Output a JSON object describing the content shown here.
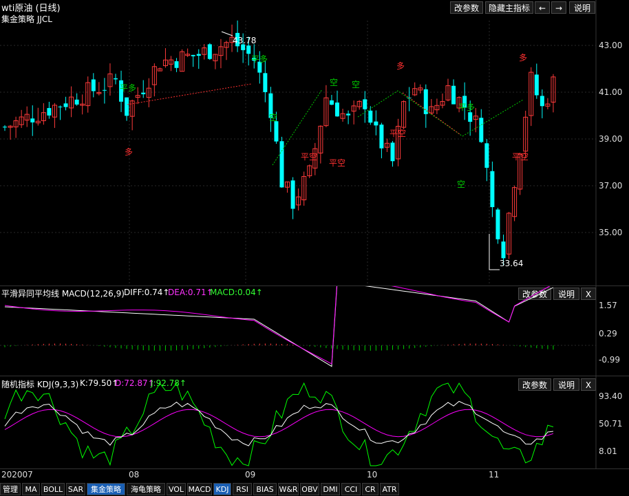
{
  "header": {
    "title": "wti原油 (日线)",
    "strategy": "集金策略 JJCL"
  },
  "buttons": {
    "change_params": "改参数",
    "hide_main": "隐藏主指标",
    "left_arrow": "←",
    "right_arrow": "→",
    "help": "说明",
    "close": "X"
  },
  "price_axis": [
    "43.00",
    "41.00",
    "39.00",
    "37.00",
    "35.00"
  ],
  "annotations": {
    "high": "43.78",
    "low": "33.64",
    "signals": [
      {
        "text": "平多",
        "color": "#00cc00"
      },
      {
        "text": "多",
        "color": "#ff3030"
      },
      {
        "text": "平多",
        "color": "#00cc00"
      },
      {
        "text": "空",
        "color": "#00cc00"
      },
      {
        "text": "平空",
        "color": "#ff3030"
      },
      {
        "text": "空",
        "color": "#00cc00"
      },
      {
        "text": "空",
        "color": "#00cc00"
      },
      {
        "text": "平空",
        "color": "#ff3030"
      },
      {
        "text": "多",
        "color": "#ff3030"
      },
      {
        "text": "平空",
        "color": "#ff3030"
      },
      {
        "text": "平多",
        "color": "#00cc00"
      },
      {
        "text": "空",
        "color": "#00cc00"
      },
      {
        "text": "多",
        "color": "#ff3030"
      },
      {
        "text": "平空",
        "color": "#ff3030"
      }
    ]
  },
  "macd": {
    "title": "平滑异同平均线 MACD(12,26,9)",
    "diff": "DIFF:0.74↑",
    "dea": "DEA:0.71↑",
    "macd": "MACD:0.04↑",
    "axis": [
      "1.57",
      "0.29",
      "-0.99"
    ]
  },
  "kdj": {
    "title": "随机指标 KDJ(9,3,3)",
    "k": "K:79.50↑",
    "d": "D:72.87↑",
    "j": "J:92.78↑",
    "axis": [
      "93.40",
      "50.71",
      "8.01"
    ]
  },
  "time_axis": [
    "202007",
    "08",
    "09",
    "10",
    "11"
  ],
  "tabs": [
    "管理",
    "MA",
    "BOLL",
    "SAR",
    "集金策略",
    "海龟策略",
    "VOL",
    "MACD",
    "KDJ",
    "RSI",
    "BIAS",
    "W&R",
    "OBV",
    "DMI",
    "CCI",
    "CR",
    "ATR"
  ],
  "active_tabs": [
    "集金策略",
    "KDJ"
  ],
  "colors": {
    "up": "#ff3b3b",
    "down": "#00ffff",
    "diff_line": "#ffffff",
    "dea_line": "#ff00ff",
    "j_line": "#00ff00"
  }
}
